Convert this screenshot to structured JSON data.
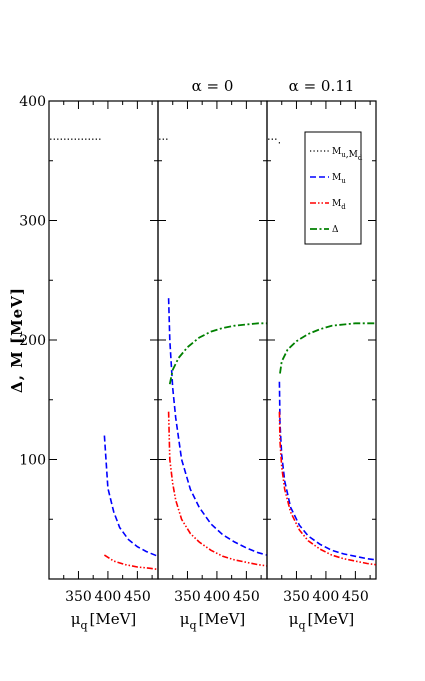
{
  "chart_data": {
    "type": "line",
    "ylabel": "Δ, M [MeV]",
    "ylim": [
      0,
      400
    ],
    "yticks": [
      100,
      200,
      300,
      400
    ],
    "xlim": [
      300,
      485
    ],
    "xticks": [
      350,
      400,
      450
    ],
    "legend_position": "top-right",
    "legend_entries": [
      {
        "label": "M_u,M_d",
        "style": "dotted",
        "color": "#000000"
      },
      {
        "label": "M_u",
        "style": "dashed",
        "color": "#0000ff"
      },
      {
        "label": "M_d",
        "style": "dash-dot-dot",
        "color": "#ff0000"
      },
      {
        "label": "Δ",
        "style": "dash-dot",
        "color": "#008000"
      }
    ],
    "panels": [
      {
        "title": "",
        "xlabel": "μq [MeV]",
        "series": [
          {
            "key": "Mud",
            "x": [
              302,
              390
            ],
            "y": [
              368,
              368
            ]
          },
          {
            "key": "Mu",
            "x": [
              394,
              400,
              410,
              420,
              435,
              450,
              465,
              485
            ],
            "y": [
              120,
              76,
              56,
              43,
              33,
              27,
              23,
              19
            ]
          },
          {
            "key": "Md",
            "x": [
              394,
              410,
              430,
              450,
              470,
              485
            ],
            "y": [
              20,
              15,
              12,
              10,
              9,
              8
            ]
          }
        ]
      },
      {
        "title": "α = 0",
        "xlabel": "μq [MeV]",
        "series": [
          {
            "key": "Mud",
            "x": [
              302,
              316
            ],
            "y": [
              368,
              368
            ]
          },
          {
            "key": "Mu",
            "x": [
              318,
              320,
              325,
              330,
              340,
              355,
              370,
              390,
              410,
              430,
              450,
              470,
              485
            ],
            "y": [
              235,
              200,
              160,
              135,
              100,
              75,
              60,
              46,
              37,
              31,
              26,
              22,
              20
            ]
          },
          {
            "key": "Md",
            "x": [
              318,
              320,
              325,
              330,
              340,
              355,
              370,
              390,
              410,
              430,
              450,
              470,
              485
            ],
            "y": [
              140,
              100,
              80,
              66,
              50,
              38,
              31,
              24,
              19,
              16,
              14,
              12,
              11
            ]
          },
          {
            "key": "Delta",
            "x": [
              320,
              325,
              335,
              350,
              370,
              390,
              410,
              430,
              450,
              470,
              485
            ],
            "y": [
              163,
              175,
              185,
              194,
              202,
              207,
              210,
              212,
              213,
              214,
              214
            ]
          }
        ]
      },
      {
        "title": "α = 0.11",
        "xlabel": "μq [MeV]",
        "series": [
          {
            "key": "Mud",
            "x": [
              302,
              318
            ],
            "y": [
              368,
              368
            ]
          },
          {
            "key": "Mud",
            "x": [
              320,
              322
            ],
            "y": [
              365,
              365
            ]
          },
          {
            "key": "Mu",
            "x": [
              321,
              322,
              325,
              330,
              340,
              355,
              370,
              390,
              410,
              430,
              450,
              470,
              485
            ],
            "y": [
              165,
              130,
              104,
              82,
              60,
              45,
              36,
              29,
              24,
              21,
              19,
              17,
              16
            ]
          },
          {
            "key": "Md",
            "x": [
              321,
              322,
              325,
              330,
              340,
              355,
              370,
              390,
              410,
              430,
              450,
              470,
              485
            ],
            "y": [
              140,
              115,
              94,
              75,
              56,
              41,
              32,
              25,
              20,
              17,
              15,
              13,
              12
            ]
          },
          {
            "key": "Delta",
            "x": [
              322,
              325,
              335,
              350,
              370,
              390,
              410,
              430,
              450,
              470,
              485
            ],
            "y": [
              172,
              182,
              192,
              199,
              205,
              209,
              212,
              213,
              214,
              214,
              214
            ]
          }
        ]
      }
    ]
  }
}
